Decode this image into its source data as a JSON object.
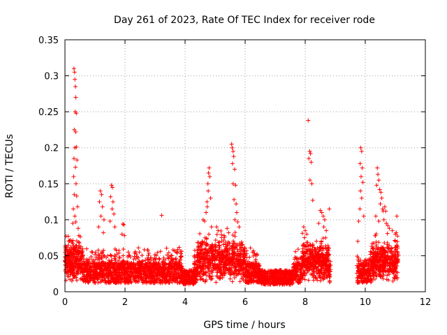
{
  "chart_data": {
    "type": "scatter",
    "title": "Day 261 of 2023, Rate Of TEC Index for receiver rode",
    "xlabel": "GPS time / hours",
    "ylabel": "ROTI / TECUs",
    "xlim": [
      0,
      12
    ],
    "ylim": [
      0,
      0.35
    ],
    "x_ticks": [
      0,
      2,
      4,
      6,
      8,
      10,
      12
    ],
    "x_tick_labels": [
      "0",
      "2",
      "4",
      "6",
      "8",
      "10",
      "12"
    ],
    "y_ticks": [
      0,
      0.05,
      0.1,
      0.15,
      0.2,
      0.25,
      0.3,
      0.35
    ],
    "y_tick_labels": [
      "0",
      "0.05",
      "0.1",
      "0.15",
      "0.2",
      "0.25",
      "0.3",
      "0.35"
    ],
    "grid": true,
    "marker": "+",
    "color": "#ff0000",
    "series": [
      {
        "name": "ROTI",
        "description": "baseline band of dense points 0.01-0.05 TECU/min from 0 to 8.85 h and 9.7 to 11.1 h; gap 8.85-9.7 h",
        "points": [
          [
            0.3,
            0.31
          ],
          [
            0.32,
            0.305
          ],
          [
            0.33,
            0.295
          ],
          [
            0.35,
            0.285
          ],
          [
            0.36,
            0.27
          ],
          [
            0.34,
            0.25
          ],
          [
            0.38,
            0.248
          ],
          [
            0.31,
            0.225
          ],
          [
            0.36,
            0.222
          ],
          [
            0.33,
            0.2
          ],
          [
            0.38,
            0.201
          ],
          [
            0.3,
            0.185
          ],
          [
            0.4,
            0.183
          ],
          [
            0.35,
            0.173
          ],
          [
            0.29,
            0.16
          ],
          [
            0.37,
            0.15
          ],
          [
            0.31,
            0.135
          ],
          [
            0.39,
            0.133
          ],
          [
            0.28,
            0.115
          ],
          [
            0.42,
            0.118
          ],
          [
            0.33,
            0.105
          ],
          [
            0.36,
            0.097
          ],
          [
            0.44,
            0.088
          ],
          [
            0.26,
            0.095
          ],
          [
            1.18,
            0.14
          ],
          [
            1.22,
            0.135
          ],
          [
            1.15,
            0.125
          ],
          [
            1.25,
            0.118
          ],
          [
            1.2,
            0.105
          ],
          [
            1.3,
            0.1
          ],
          [
            1.12,
            0.09
          ],
          [
            1.28,
            0.082
          ],
          [
            1.55,
            0.148
          ],
          [
            1.58,
            0.145
          ],
          [
            1.52,
            0.132
          ],
          [
            1.6,
            0.125
          ],
          [
            1.57,
            0.115
          ],
          [
            1.63,
            0.108
          ],
          [
            1.5,
            0.098
          ],
          [
            1.66,
            0.09
          ],
          [
            1.93,
            0.094
          ],
          [
            1.96,
            0.093
          ],
          [
            1.9,
            0.08
          ],
          [
            1.98,
            0.078
          ],
          [
            3.22,
            0.106
          ],
          [
            3.6,
            0.058
          ],
          [
            3.65,
            0.057
          ],
          [
            3.7,
            0.055
          ],
          [
            4.6,
            0.1
          ],
          [
            4.65,
            0.098
          ],
          [
            4.7,
            0.11
          ],
          [
            4.73,
            0.125
          ],
          [
            4.76,
            0.15
          ],
          [
            4.78,
            0.165
          ],
          [
            4.8,
            0.172
          ],
          [
            4.82,
            0.16
          ],
          [
            4.77,
            0.14
          ],
          [
            4.85,
            0.13
          ],
          [
            4.74,
            0.118
          ],
          [
            4.88,
            0.09
          ],
          [
            5.05,
            0.09
          ],
          [
            5.1,
            0.085
          ],
          [
            5.55,
            0.205
          ],
          [
            5.57,
            0.2
          ],
          [
            5.6,
            0.195
          ],
          [
            5.62,
            0.188
          ],
          [
            5.58,
            0.178
          ],
          [
            5.65,
            0.17
          ],
          [
            5.6,
            0.15
          ],
          [
            5.68,
            0.148
          ],
          [
            5.63,
            0.128
          ],
          [
            5.7,
            0.122
          ],
          [
            5.72,
            0.11
          ],
          [
            5.66,
            0.1
          ],
          [
            5.75,
            0.097
          ],
          [
            5.8,
            0.09
          ],
          [
            5.4,
            0.088
          ],
          [
            5.45,
            0.082
          ],
          [
            5.3,
            0.078
          ],
          [
            8.1,
            0.238
          ],
          [
            8.15,
            0.195
          ],
          [
            8.18,
            0.192
          ],
          [
            8.12,
            0.185
          ],
          [
            8.2,
            0.18
          ],
          [
            8.16,
            0.155
          ],
          [
            8.22,
            0.15
          ],
          [
            8.25,
            0.127
          ],
          [
            7.95,
            0.09
          ],
          [
            8.0,
            0.085
          ],
          [
            8.05,
            0.08
          ],
          [
            8.5,
            0.113
          ],
          [
            8.55,
            0.11
          ],
          [
            8.6,
            0.105
          ],
          [
            8.65,
            0.1
          ],
          [
            8.62,
            0.09
          ],
          [
            8.7,
            0.085
          ],
          [
            8.8,
            0.115
          ],
          [
            8.45,
            0.095
          ],
          [
            9.85,
            0.2
          ],
          [
            9.88,
            0.195
          ],
          [
            9.83,
            0.178
          ],
          [
            9.9,
            0.172
          ],
          [
            9.86,
            0.16
          ],
          [
            9.92,
            0.152
          ],
          [
            9.84,
            0.14
          ],
          [
            9.88,
            0.13
          ],
          [
            9.82,
            0.115
          ],
          [
            9.95,
            0.105
          ],
          [
            9.78,
            0.098
          ],
          [
            9.75,
            0.07
          ],
          [
            10.4,
            0.172
          ],
          [
            10.42,
            0.163
          ],
          [
            10.45,
            0.155
          ],
          [
            10.38,
            0.148
          ],
          [
            10.48,
            0.142
          ],
          [
            10.52,
            0.138
          ],
          [
            10.55,
            0.13
          ],
          [
            10.5,
            0.122
          ],
          [
            10.58,
            0.115
          ],
          [
            10.6,
            0.112
          ],
          [
            10.65,
            0.118
          ],
          [
            10.68,
            0.112
          ],
          [
            10.62,
            0.1
          ],
          [
            10.7,
            0.095
          ],
          [
            10.35,
            0.105
          ],
          [
            10.45,
            0.098
          ],
          [
            10.75,
            0.092
          ],
          [
            10.8,
            0.088
          ],
          [
            10.9,
            0.085
          ],
          [
            11.0,
            0.08
          ],
          [
            11.05,
            0.105
          ]
        ]
      }
    ]
  }
}
